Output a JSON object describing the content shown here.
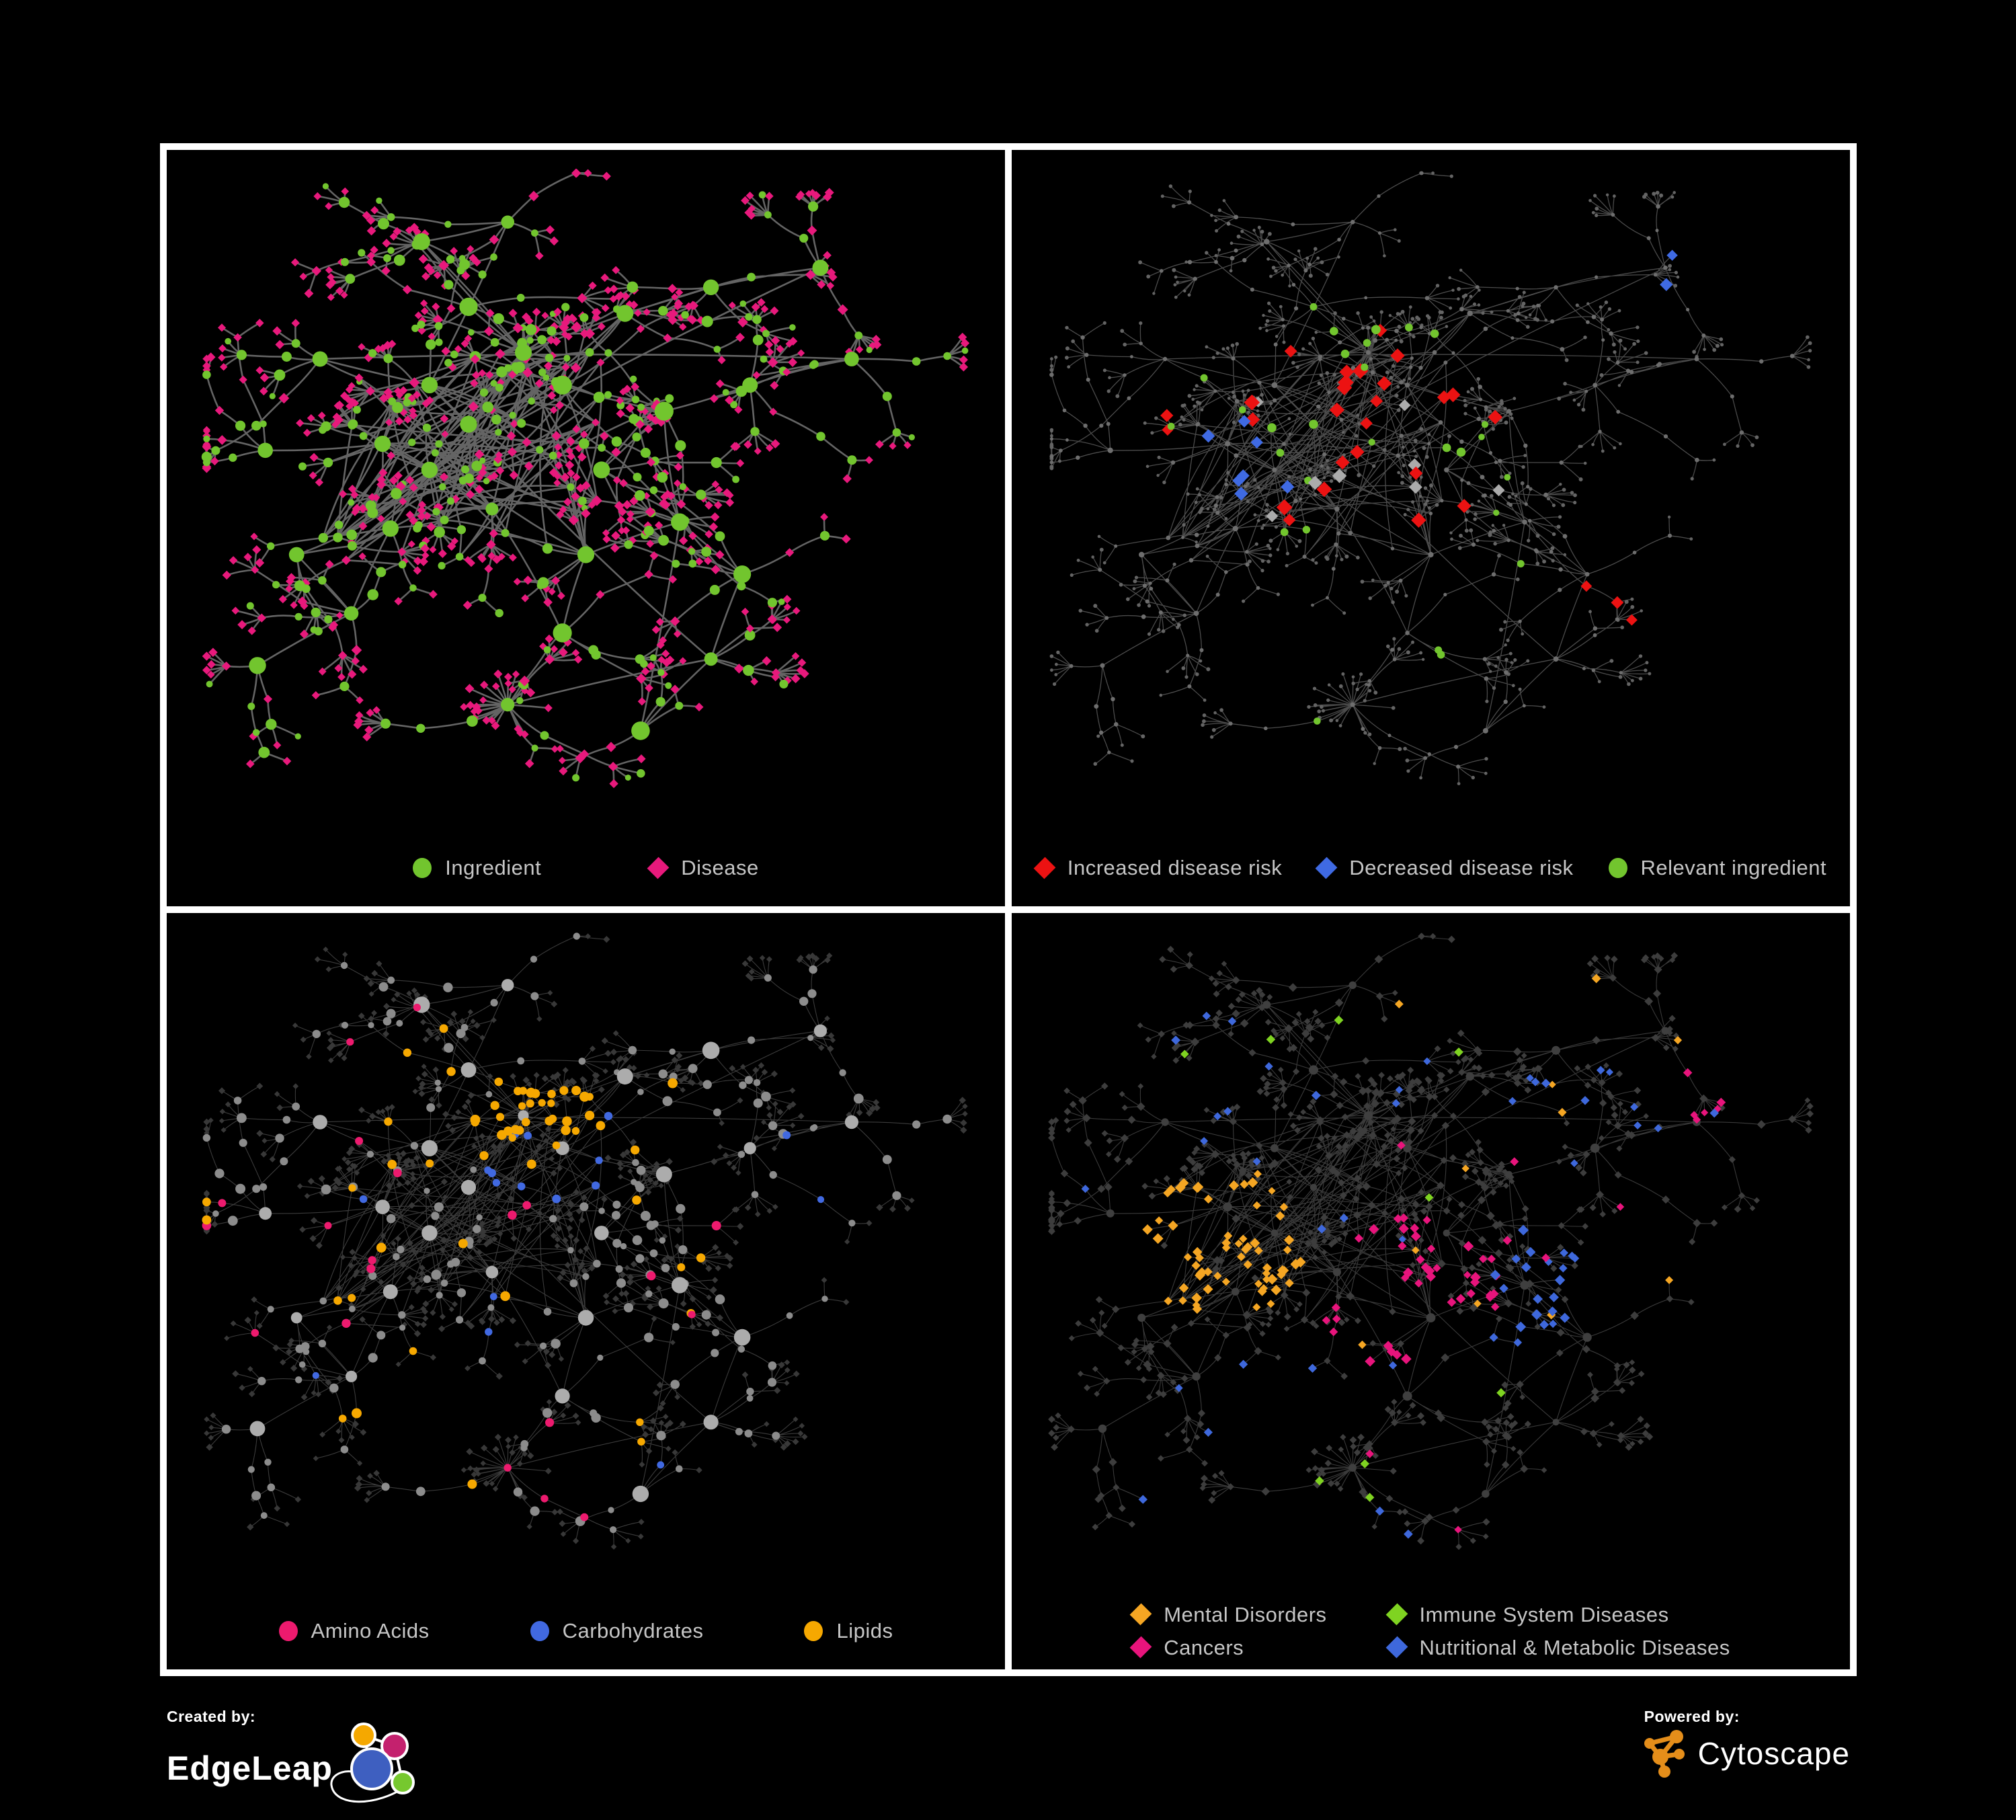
{
  "poster": {
    "background": "#000000",
    "frame_color": "#ffffff",
    "legend_text_color": "#c6c6c6"
  },
  "panels": [
    {
      "id": "ingredient-disease",
      "legend": {
        "items": [
          {
            "label": "Ingredient",
            "color": "#72C52E",
            "shape": "circle"
          },
          {
            "label": "Disease",
            "color": "#E8197C",
            "shape": "diamond"
          }
        ]
      },
      "style": {
        "seed": 11,
        "edge": {
          "color": "#6F6F6F",
          "width": 2.6,
          "opacity": 0.9
        },
        "base": {
          "hub": {
            "shape": "circle",
            "fill": "#72C52E",
            "size": [
              9,
              15
            ]
          },
          "mid": {
            "shape": "circle",
            "fill": "#72C52E",
            "size": [
              5,
              8.5
            ]
          },
          "leaf": {
            "shape": "diamond",
            "fill": "#E8197C",
            "size": [
              5.5,
              7
            ]
          }
        },
        "midAltProb": 0.34,
        "midAlt": {
          "shape": "diamond",
          "fill": "#E8197C",
          "size": [
            6,
            8
          ]
        },
        "leafAltProb": 0.13,
        "leafAlt": {
          "shape": "circle",
          "fill": "#72C52E",
          "size": [
            4.5,
            6.5
          ]
        },
        "highlights": []
      }
    },
    {
      "id": "disease-risk",
      "legend": {
        "items": [
          {
            "label": "Increased disease risk",
            "color": "#EC1212",
            "shape": "diamond"
          },
          {
            "label": "Decreased disease risk",
            "color": "#3F6AE3",
            "shape": "diamond"
          },
          {
            "label": "Relevant ingredient",
            "color": "#72C52E",
            "shape": "circle"
          }
        ]
      },
      "style": {
        "seed": 22,
        "edge": {
          "color": "#585858",
          "width": 1.3,
          "opacity": 0.85
        },
        "base": {
          "hub": {
            "shape": "circle",
            "fill": "#6E6E6E",
            "size": [
              3.2,
              4.5
            ]
          },
          "mid": {
            "shape": "circle",
            "fill": "#6E6E6E",
            "size": [
              2.4,
              3.4
            ]
          },
          "leaf": {
            "shape": "circle",
            "fill": "#646464",
            "size": [
              2.2,
              3.0
            ]
          }
        },
        "highlights": [
          {
            "shape": "diamond",
            "color": "#EC1212",
            "size": [
              9,
              12
            ],
            "count": 24,
            "region": [
              0.42,
              0.42,
              0.17
            ],
            "kinds": [
              "mid",
              "leaf"
            ]
          },
          {
            "shape": "diamond",
            "color": "#EC1212",
            "size": [
              8,
              10
            ],
            "count": 3,
            "region": [
              0.7,
              0.7,
              0.09
            ],
            "kinds": [
              "mid",
              "leaf"
            ]
          },
          {
            "shape": "diamond",
            "color": "#EC1212",
            "size": [
              8,
              10
            ],
            "count": 2,
            "region": [
              0.13,
              0.44,
              0.07
            ],
            "kinds": [
              "mid",
              "leaf"
            ]
          },
          {
            "shape": "diamond",
            "color": "#3F6AE3",
            "size": [
              9,
              11
            ],
            "count": 7,
            "region": [
              0.26,
              0.45,
              0.08
            ],
            "kinds": [
              "mid",
              "leaf"
            ]
          },
          {
            "shape": "diamond",
            "color": "#3F6AE3",
            "size": [
              8,
              10
            ],
            "count": 2,
            "region": [
              0.83,
              0.17,
              0.05
            ],
            "kinds": [
              "mid",
              "leaf"
            ]
          },
          {
            "shape": "diamond",
            "color": "#ABABAB",
            "size": [
              8,
              11
            ],
            "count": 8,
            "region": [
              0.45,
              0.46,
              0.2
            ],
            "kinds": [
              "mid",
              "leaf"
            ]
          },
          {
            "shape": "circle",
            "color": "#72C52E",
            "size": [
              5,
              7
            ],
            "count": 20,
            "region": [
              0.36,
              0.42,
              0.22
            ],
            "kinds": [
              "mid",
              "hub"
            ]
          },
          {
            "shape": "circle",
            "color": "#72C52E",
            "size": [
              4.5,
              6
            ],
            "count": 8,
            "region": [
              0.5,
              0.7,
              0.35
            ],
            "kinds": [
              "mid",
              "hub"
            ]
          }
        ]
      }
    },
    {
      "id": "nutrients",
      "legend": {
        "items": [
          {
            "label": "Amino Acids",
            "color": "#ED1A6E",
            "shape": "circle"
          },
          {
            "label": "Carbohydrates",
            "color": "#4169E1",
            "shape": "circle"
          },
          {
            "label": "Lipids",
            "color": "#F6A800",
            "shape": "circle"
          }
        ]
      },
      "style": {
        "seed": 33,
        "edge": {
          "color": "#5A5A5A",
          "width": 1.1,
          "opacity": 0.65
        },
        "base": {
          "hub": {
            "shape": "circle",
            "fill": "#ACACAC",
            "size": [
              8,
              13
            ]
          },
          "mid": {
            "shape": "circle",
            "fill": "#8C8C8C",
            "size": [
              4.5,
              7.5
            ]
          },
          "leaf": {
            "shape": "diamond",
            "fill": "#383838",
            "size": [
              4,
              5.2
            ]
          }
        },
        "highlights": [
          {
            "shape": "circle",
            "color": "#F6A800",
            "size": [
              5.5,
              7.5
            ],
            "count": 34,
            "region": [
              0.43,
              0.3,
              0.09
            ],
            "kinds": [
              "mid"
            ]
          },
          {
            "shape": "circle",
            "color": "#F6A800",
            "size": [
              5.5,
              7.5
            ],
            "count": 26,
            "region": [
              0.42,
              0.5,
              0.42
            ],
            "kinds": [
              "mid"
            ]
          },
          {
            "shape": "circle",
            "color": "#4169E1",
            "size": [
              5.5,
              6.5
            ],
            "count": 10,
            "region": [
              0.46,
              0.33,
              0.07
            ],
            "kinds": [
              "mid"
            ]
          },
          {
            "shape": "circle",
            "color": "#4169E1",
            "size": [
              5,
              6
            ],
            "count": 7,
            "region": [
              0.5,
              0.55,
              0.45
            ],
            "kinds": [
              "mid"
            ]
          },
          {
            "shape": "circle",
            "color": "#ED1A6E",
            "size": [
              5.5,
              7
            ],
            "count": 20,
            "region": [
              0.48,
              0.55,
              0.48
            ],
            "kinds": [
              "mid",
              "hub"
            ]
          }
        ]
      }
    },
    {
      "id": "disease-classes",
      "legend": {
        "items": [
          {
            "label": "Mental Disorders",
            "color": "#F5A623",
            "shape": "diamond"
          },
          {
            "label": "Immune System Diseases",
            "color": "#7FD321",
            "shape": "diamond"
          },
          {
            "label": "Cancers",
            "color": "#E8147C",
            "shape": "diamond"
          },
          {
            "label": "Nutritional & Metabolic Diseases",
            "color": "#3E68DC",
            "shape": "diamond"
          }
        ]
      },
      "style": {
        "seed": 44,
        "edge": {
          "color": "#606060",
          "width": 1.1,
          "opacity": 0.6
        },
        "base": {
          "hub": {
            "shape": "circle",
            "fill": "#3F3F3F",
            "size": [
              5,
              7
            ]
          },
          "mid": {
            "shape": "diamond",
            "fill": "#3D3D3D",
            "size": [
              5,
              6.5
            ]
          },
          "leaf": {
            "shape": "diamond",
            "fill": "#3D3D3D",
            "size": [
              4.2,
              5.5
            ]
          }
        },
        "highlights": [
          {
            "shape": "diamond",
            "color": "#F5A623",
            "size": [
              6,
              8
            ],
            "count": 62,
            "region": [
              0.23,
              0.49,
              0.11
            ],
            "kinds": [
              "mid",
              "leaf"
            ]
          },
          {
            "shape": "diamond",
            "color": "#F5A623",
            "size": [
              5.5,
              7
            ],
            "count": 14,
            "region": [
              0.45,
              0.35,
              0.42
            ],
            "kinds": [
              "mid",
              "leaf"
            ]
          },
          {
            "shape": "diamond",
            "color": "#E8147C",
            "size": [
              6,
              8
            ],
            "count": 40,
            "region": [
              0.47,
              0.56,
              0.12
            ],
            "kinds": [
              "mid",
              "leaf"
            ]
          },
          {
            "shape": "diamond",
            "color": "#E8147C",
            "size": [
              5.5,
              7
            ],
            "count": 6,
            "region": [
              0.85,
              0.28,
              0.07
            ],
            "kinds": [
              "mid",
              "leaf"
            ]
          },
          {
            "shape": "diamond",
            "color": "#E8147C",
            "size": [
              5.5,
              7
            ],
            "count": 8,
            "region": [
              0.5,
              0.7,
              0.4
            ],
            "kinds": [
              "mid",
              "leaf"
            ]
          },
          {
            "shape": "diamond",
            "color": "#3E68DC",
            "size": [
              6,
              8
            ],
            "count": 22,
            "region": [
              0.67,
              0.57,
              0.12
            ],
            "kinds": [
              "mid",
              "leaf"
            ]
          },
          {
            "shape": "diamond",
            "color": "#3E68DC",
            "size": [
              5.5,
              7
            ],
            "count": 12,
            "region": [
              0.74,
              0.3,
              0.14
            ],
            "kinds": [
              "mid",
              "leaf"
            ]
          },
          {
            "shape": "diamond",
            "color": "#3E68DC",
            "size": [
              5.5,
              7
            ],
            "count": 16,
            "region": [
              0.35,
              0.25,
              0.35
            ],
            "kinds": [
              "mid",
              "leaf"
            ]
          },
          {
            "shape": "diamond",
            "color": "#3E68DC",
            "size": [
              5.5,
              7
            ],
            "count": 8,
            "region": [
              0.3,
              0.8,
              0.25
            ],
            "kinds": [
              "mid",
              "leaf"
            ]
          },
          {
            "shape": "diamond",
            "color": "#7FD321",
            "size": [
              6,
              7
            ],
            "count": 9,
            "region": [
              0.5,
              0.5,
              0.45
            ],
            "kinds": [
              "mid",
              "leaf"
            ]
          }
        ]
      }
    }
  ],
  "footer": {
    "created_by_label": "Created by:",
    "created_by_name": "EdgeLeap",
    "powered_by_label": "Powered by:",
    "powered_by_name": "Cytoscape",
    "cytoscape_color": "#E58E1A",
    "edgeleap_node_colors": [
      "#F5A800",
      "#C4216E",
      "#3E5FC0",
      "#76C82E"
    ]
  }
}
